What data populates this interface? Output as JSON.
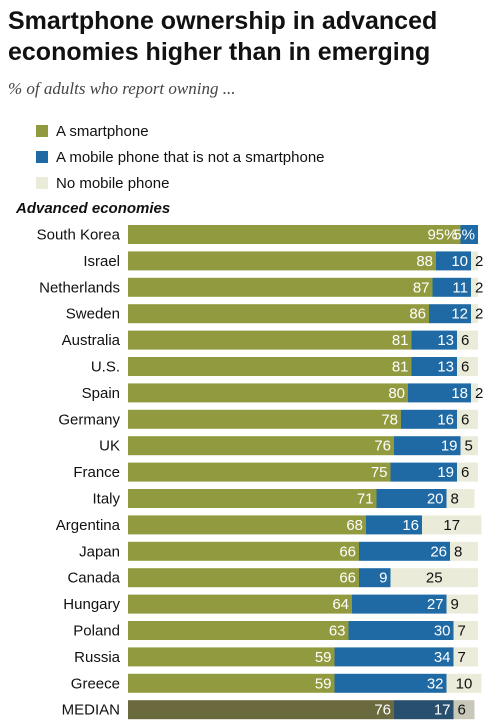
{
  "chart_data": {
    "type": "bar",
    "orientation": "horizontal",
    "stacked": true,
    "title": "Smartphone ownership in advanced economies higher than in emerging",
    "subtitle": "% of adults who report owning ...",
    "section": "Advanced economies",
    "categories": [
      "South Korea",
      "Israel",
      "Netherlands",
      "Sweden",
      "Australia",
      "U.S.",
      "Spain",
      "Germany",
      "UK",
      "France",
      "Italy",
      "Argentina",
      "Japan",
      "Canada",
      "Hungary",
      "Poland",
      "Russia",
      "Greece",
      "MEDIAN"
    ],
    "series": [
      {
        "name": "A smartphone",
        "color": "#929a3f",
        "values": [
          95,
          88,
          87,
          86,
          81,
          81,
          80,
          78,
          76,
          75,
          71,
          68,
          66,
          66,
          64,
          63,
          59,
          59,
          76
        ],
        "labels": [
          "95%",
          "88",
          "87",
          "86",
          "81",
          "81",
          "80",
          "78",
          "76",
          "75",
          "71",
          "68",
          "66",
          "66",
          "64",
          "63",
          "59",
          "59",
          "76"
        ]
      },
      {
        "name": "A mobile phone that is not a smartphone",
        "color": "#1f6aa5",
        "values": [
          5,
          10,
          11,
          12,
          13,
          13,
          18,
          16,
          19,
          19,
          20,
          16,
          26,
          9,
          27,
          30,
          34,
          32,
          17
        ],
        "labels": [
          "5%",
          "10",
          "11",
          "12",
          "13",
          "13",
          "18",
          "16",
          "19",
          "19",
          "20",
          "16",
          "26",
          "9",
          "27",
          "30",
          "34",
          "32",
          "17"
        ]
      },
      {
        "name": "No mobile phone",
        "color": "#ebebda",
        "values": [
          0,
          2,
          2,
          2,
          6,
          6,
          2,
          6,
          5,
          6,
          8,
          17,
          8,
          25,
          9,
          7,
          7,
          10,
          6
        ],
        "labels": [
          "",
          "2",
          "2",
          "2",
          "6",
          "6",
          "2",
          "6",
          "5",
          "6",
          "8",
          "17",
          "8",
          "25",
          "9",
          "7",
          "7",
          "10",
          "6"
        ]
      }
    ],
    "median_colors": [
      "#6b6a3e",
      "#294f6e",
      "#c9c8b8"
    ],
    "xlim": [
      0,
      100
    ],
    "grid": false,
    "legend_position": "top-left"
  }
}
